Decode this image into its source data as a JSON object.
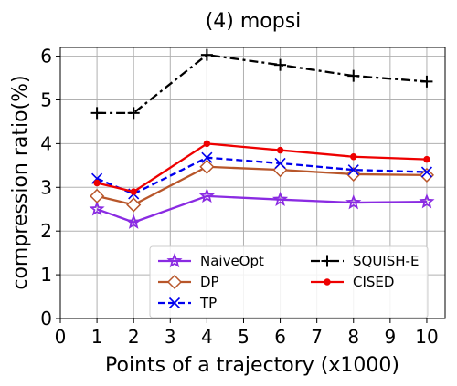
{
  "chart_data": {
    "type": "line",
    "title": "(4) mopsi",
    "xlabel": "Points of a trajectory (x1000)",
    "ylabel": "compression ratio(%)",
    "xlim": [
      0,
      10.5
    ],
    "ylim": [
      0,
      6.2
    ],
    "xticks": [
      0,
      1,
      2,
      3,
      4,
      5,
      6,
      7,
      8,
      9,
      10
    ],
    "yticks": [
      0,
      1,
      2,
      3,
      4,
      5,
      6
    ],
    "grid": true,
    "legend_position": "bottom-right",
    "legend_columns": 2,
    "x": [
      1,
      2,
      4,
      6,
      8,
      10
    ],
    "series": [
      {
        "name": "NaiveOpt",
        "values": [
          2.5,
          2.2,
          2.8,
          2.72,
          2.65,
          2.67
        ],
        "color": "#8a2be2",
        "dash": "solid",
        "marker": "star"
      },
      {
        "name": "DP",
        "values": [
          2.8,
          2.6,
          3.47,
          3.4,
          3.3,
          3.28
        ],
        "color": "#b8562a",
        "dash": "solid",
        "marker": "diamond-open"
      },
      {
        "name": "TP",
        "values": [
          3.2,
          2.85,
          3.68,
          3.55,
          3.4,
          3.35
        ],
        "color": "#0000ee",
        "dash": "dashed",
        "marker": "x"
      },
      {
        "name": "SQUISH-E",
        "values": [
          4.7,
          4.7,
          6.03,
          5.8,
          5.55,
          5.42
        ],
        "color": "#000000",
        "dash": "dashdot",
        "marker": "plus"
      },
      {
        "name": "CISED",
        "values": [
          3.1,
          2.9,
          4.0,
          3.85,
          3.7,
          3.64
        ],
        "color": "#ee0000",
        "dash": "solid",
        "marker": "circle"
      }
    ]
  }
}
